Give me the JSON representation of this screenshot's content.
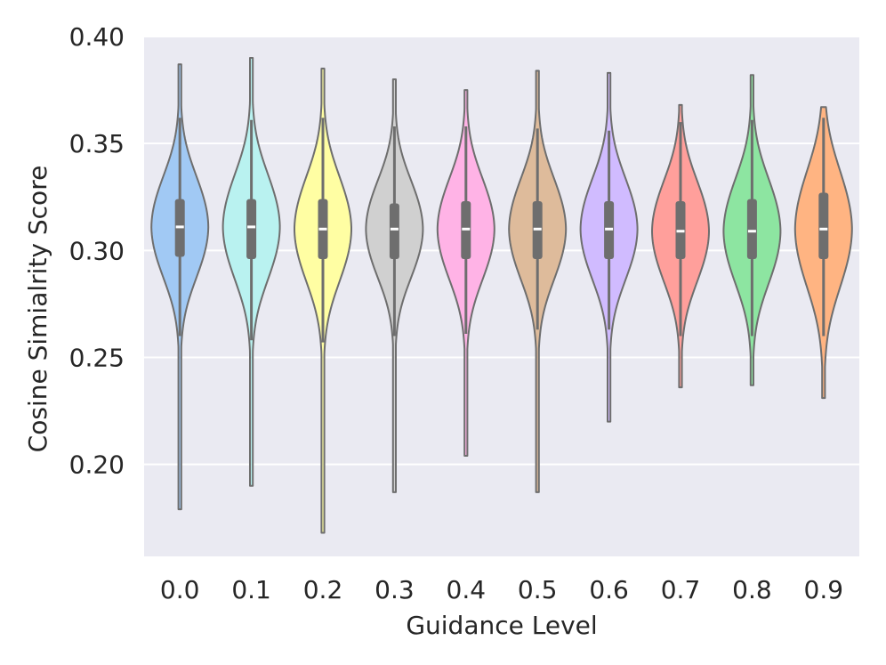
{
  "chart_data": {
    "type": "violin",
    "title": "",
    "xlabel": "Guidance Level",
    "ylabel": "Cosine Simialrity Score",
    "ylim": [
      0.157,
      0.4
    ],
    "yticks": [
      0.2,
      0.25,
      0.3,
      0.35,
      0.4
    ],
    "ytick_labels": [
      "0.20",
      "0.25",
      "0.30",
      "0.35",
      "0.40"
    ],
    "grid": "horizontal",
    "colors": {
      "background": "#eaeaf2",
      "grid": "#ffffff",
      "outline": "#6e6e6e",
      "box": "#6e6e6e",
      "median": "#ffffff",
      "text": "#262626"
    },
    "series": [
      {
        "category": "0.0",
        "color": "#a1c9f4",
        "min": 0.179,
        "max": 0.387,
        "q1": 0.297,
        "median": 0.311,
        "q3": 0.324,
        "whisker_low": 0.26,
        "whisker_high": 0.362
      },
      {
        "category": "0.1",
        "color": "#b9f2f0",
        "min": 0.19,
        "max": 0.39,
        "q1": 0.296,
        "median": 0.311,
        "q3": 0.324,
        "whisker_low": 0.258,
        "whisker_high": 0.361
      },
      {
        "category": "0.2",
        "color": "#fffea3",
        "min": 0.168,
        "max": 0.385,
        "q1": 0.296,
        "median": 0.31,
        "q3": 0.324,
        "whisker_low": 0.257,
        "whisker_high": 0.362
      },
      {
        "category": "0.3",
        "color": "#d0d0d0",
        "min": 0.187,
        "max": 0.38,
        "q1": 0.296,
        "median": 0.31,
        "q3": 0.322,
        "whisker_low": 0.26,
        "whisker_high": 0.358
      },
      {
        "category": "0.4",
        "color": "#ffb3e6",
        "min": 0.204,
        "max": 0.375,
        "q1": 0.296,
        "median": 0.31,
        "q3": 0.323,
        "whisker_low": 0.261,
        "whisker_high": 0.358
      },
      {
        "category": "0.5",
        "color": "#debb9b",
        "min": 0.187,
        "max": 0.384,
        "q1": 0.296,
        "median": 0.31,
        "q3": 0.323,
        "whisker_low": 0.263,
        "whisker_high": 0.357
      },
      {
        "category": "0.6",
        "color": "#d0bbff",
        "min": 0.22,
        "max": 0.383,
        "q1": 0.296,
        "median": 0.31,
        "q3": 0.323,
        "whisker_low": 0.263,
        "whisker_high": 0.356
      },
      {
        "category": "0.7",
        "color": "#ff9f9b",
        "min": 0.236,
        "max": 0.368,
        "q1": 0.296,
        "median": 0.309,
        "q3": 0.323,
        "whisker_low": 0.26,
        "whisker_high": 0.36
      },
      {
        "category": "0.8",
        "color": "#8de5a1",
        "min": 0.237,
        "max": 0.382,
        "q1": 0.296,
        "median": 0.309,
        "q3": 0.324,
        "whisker_low": 0.26,
        "whisker_high": 0.361
      },
      {
        "category": "0.9",
        "color": "#ffb482",
        "min": 0.231,
        "max": 0.367,
        "q1": 0.296,
        "median": 0.31,
        "q3": 0.327,
        "whisker_low": 0.26,
        "whisker_high": 0.362
      }
    ]
  }
}
